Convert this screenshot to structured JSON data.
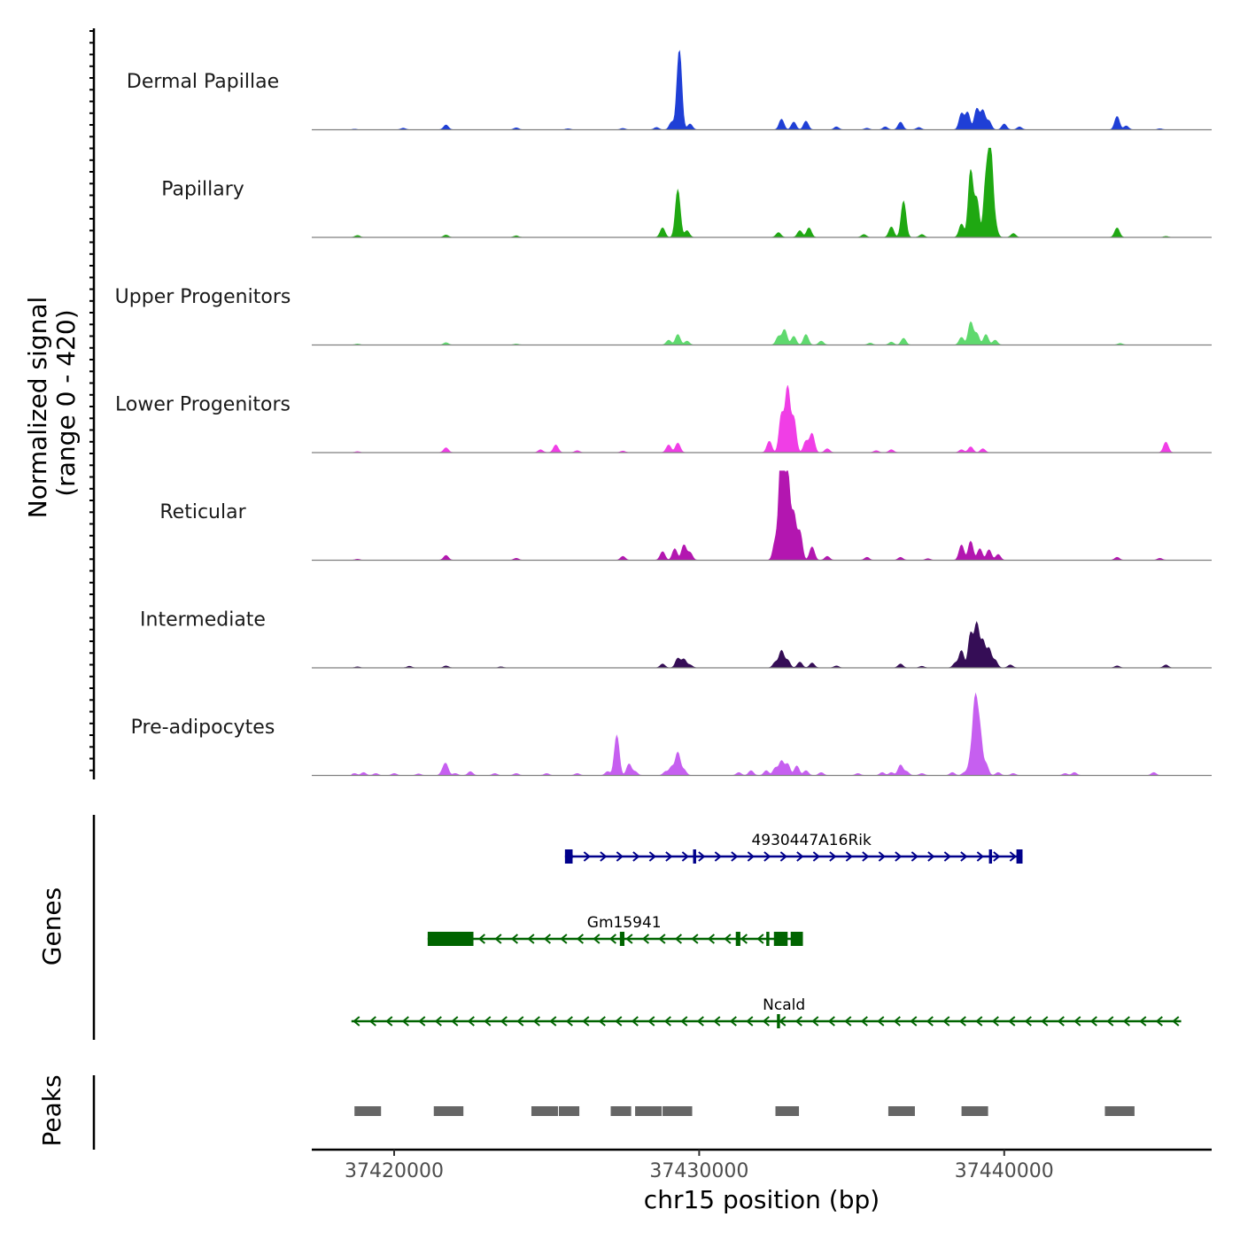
{
  "chart_data": {
    "type": "area",
    "title": "",
    "chromosome": "chr15",
    "xlabel": "chr15 position (bp)",
    "ylabel_line1": "Normalized signal",
    "ylabel_line2": "(range 0 - 420)",
    "signal_range": [
      0,
      420
    ],
    "xlim": [
      37417300,
      37446800
    ],
    "x_ticks": [
      37420000,
      37430000,
      37440000
    ],
    "x_tick_labels": [
      "37420000",
      "37430000",
      "37440000"
    ],
    "tracks": [
      {
        "name": "Dermal Papillae",
        "color": "#1f3fd6",
        "peaks": [
          [
            37418700,
            3
          ],
          [
            37420300,
            8
          ],
          [
            37421700,
            25
          ],
          [
            37424000,
            10
          ],
          [
            37425700,
            5
          ],
          [
            37427500,
            7
          ],
          [
            37428600,
            12
          ],
          [
            37429100,
            40
          ],
          [
            37429350,
            420
          ],
          [
            37429700,
            30
          ],
          [
            37432700,
            55
          ],
          [
            37433100,
            40
          ],
          [
            37433500,
            45
          ],
          [
            37434500,
            15
          ],
          [
            37435500,
            8
          ],
          [
            37436100,
            15
          ],
          [
            37436600,
            40
          ],
          [
            37437200,
            12
          ],
          [
            37438600,
            85
          ],
          [
            37438800,
            90
          ],
          [
            37439100,
            110
          ],
          [
            37439300,
            100
          ],
          [
            37439500,
            45
          ],
          [
            37440000,
            30
          ],
          [
            37440500,
            15
          ],
          [
            37443700,
            70
          ],
          [
            37444000,
            20
          ],
          [
            37445100,
            5
          ]
        ]
      },
      {
        "name": "Papillary",
        "color": "#1fa812",
        "peaks": [
          [
            37418800,
            10
          ],
          [
            37421700,
            12
          ],
          [
            37424000,
            8
          ],
          [
            37428800,
            50
          ],
          [
            37429300,
            250
          ],
          [
            37429600,
            35
          ],
          [
            37432600,
            25
          ],
          [
            37433300,
            35
          ],
          [
            37433600,
            50
          ],
          [
            37435400,
            15
          ],
          [
            37436300,
            55
          ],
          [
            37436700,
            190
          ],
          [
            37437300,
            15
          ],
          [
            37438600,
            70
          ],
          [
            37438900,
            350
          ],
          [
            37439100,
            200
          ],
          [
            37439400,
            280
          ],
          [
            37439550,
            450
          ],
          [
            37439700,
            60
          ],
          [
            37440300,
            20
          ],
          [
            37443700,
            50
          ],
          [
            37445300,
            5
          ]
        ]
      },
      {
        "name": "Upper Progenitors",
        "color": "#5fd96e",
        "peaks": [
          [
            37418800,
            5
          ],
          [
            37421700,
            12
          ],
          [
            37424000,
            5
          ],
          [
            37429000,
            25
          ],
          [
            37429300,
            55
          ],
          [
            37429600,
            20
          ],
          [
            37432600,
            45
          ],
          [
            37432800,
            80
          ],
          [
            37433100,
            45
          ],
          [
            37433500,
            55
          ],
          [
            37434000,
            20
          ],
          [
            37435600,
            10
          ],
          [
            37436300,
            15
          ],
          [
            37436700,
            35
          ],
          [
            37438600,
            40
          ],
          [
            37438900,
            120
          ],
          [
            37439100,
            60
          ],
          [
            37439400,
            55
          ],
          [
            37439700,
            25
          ],
          [
            37443800,
            8
          ]
        ]
      },
      {
        "name": "Lower Progenitors",
        "color": "#f03ee6",
        "peaks": [
          [
            37418800,
            5
          ],
          [
            37421700,
            25
          ],
          [
            37424800,
            15
          ],
          [
            37425300,
            40
          ],
          [
            37426000,
            10
          ],
          [
            37427500,
            8
          ],
          [
            37429000,
            40
          ],
          [
            37429300,
            50
          ],
          [
            37432300,
            60
          ],
          [
            37432700,
            200
          ],
          [
            37432900,
            340
          ],
          [
            37433100,
            180
          ],
          [
            37433500,
            60
          ],
          [
            37433700,
            100
          ],
          [
            37434200,
            20
          ],
          [
            37435800,
            10
          ],
          [
            37436300,
            15
          ],
          [
            37438600,
            15
          ],
          [
            37438900,
            30
          ],
          [
            37439300,
            20
          ],
          [
            37445300,
            55
          ]
        ]
      },
      {
        "name": "Reticular",
        "color": "#b316b0",
        "peaks": [
          [
            37418800,
            5
          ],
          [
            37421700,
            25
          ],
          [
            37424000,
            10
          ],
          [
            37427500,
            20
          ],
          [
            37428800,
            45
          ],
          [
            37429200,
            60
          ],
          [
            37429500,
            80
          ],
          [
            37429700,
            40
          ],
          [
            37432500,
            100
          ],
          [
            37432700,
            640
          ],
          [
            37432900,
            450
          ],
          [
            37433100,
            240
          ],
          [
            37433300,
            150
          ],
          [
            37433700,
            70
          ],
          [
            37434200,
            20
          ],
          [
            37435500,
            15
          ],
          [
            37436600,
            15
          ],
          [
            37437500,
            8
          ],
          [
            37438600,
            80
          ],
          [
            37438900,
            100
          ],
          [
            37439200,
            60
          ],
          [
            37439500,
            55
          ],
          [
            37439800,
            30
          ],
          [
            37443700,
            15
          ],
          [
            37445100,
            10
          ]
        ]
      },
      {
        "name": "Intermediate",
        "color": "#350d56",
        "peaks": [
          [
            37418800,
            5
          ],
          [
            37420500,
            8
          ],
          [
            37421700,
            10
          ],
          [
            37423500,
            5
          ],
          [
            37428800,
            20
          ],
          [
            37429300,
            50
          ],
          [
            37429500,
            45
          ],
          [
            37429700,
            15
          ],
          [
            37432500,
            30
          ],
          [
            37432700,
            90
          ],
          [
            37432900,
            40
          ],
          [
            37433300,
            30
          ],
          [
            37433700,
            25
          ],
          [
            37434500,
            10
          ],
          [
            37436600,
            20
          ],
          [
            37437300,
            8
          ],
          [
            37438400,
            25
          ],
          [
            37438600,
            90
          ],
          [
            37438900,
            180
          ],
          [
            37439100,
            230
          ],
          [
            37439300,
            140
          ],
          [
            37439500,
            100
          ],
          [
            37439700,
            40
          ],
          [
            37440200,
            15
          ],
          [
            37443700,
            10
          ],
          [
            37445300,
            15
          ]
        ]
      },
      {
        "name": "Pre-adipocytes",
        "color": "#c65ff0",
        "peaks": [
          [
            37418700,
            10
          ],
          [
            37419000,
            15
          ],
          [
            37419400,
            10
          ],
          [
            37420000,
            10
          ],
          [
            37420800,
            8
          ],
          [
            37421600,
            20
          ],
          [
            37421700,
            55
          ],
          [
            37422000,
            10
          ],
          [
            37422500,
            20
          ],
          [
            37423300,
            10
          ],
          [
            37424000,
            10
          ],
          [
            37425000,
            10
          ],
          [
            37426000,
            10
          ],
          [
            37427000,
            20
          ],
          [
            37427300,
            210
          ],
          [
            37427700,
            60
          ],
          [
            37427900,
            20
          ],
          [
            37428900,
            20
          ],
          [
            37429100,
            45
          ],
          [
            37429300,
            120
          ],
          [
            37429500,
            30
          ],
          [
            37431300,
            15
          ],
          [
            37431700,
            25
          ],
          [
            37432200,
            25
          ],
          [
            37432500,
            40
          ],
          [
            37432700,
            75
          ],
          [
            37432900,
            60
          ],
          [
            37433200,
            50
          ],
          [
            37433500,
            25
          ],
          [
            37434000,
            15
          ],
          [
            37435200,
            10
          ],
          [
            37436000,
            15
          ],
          [
            37436300,
            15
          ],
          [
            37436600,
            55
          ],
          [
            37436800,
            20
          ],
          [
            37437300,
            10
          ],
          [
            37438300,
            15
          ],
          [
            37438700,
            15
          ],
          [
            37438900,
            80
          ],
          [
            37439050,
            380
          ],
          [
            37439200,
            220
          ],
          [
            37439400,
            60
          ],
          [
            37439800,
            15
          ],
          [
            37440300,
            10
          ],
          [
            37442000,
            10
          ],
          [
            37442300,
            15
          ],
          [
            37444900,
            15
          ]
        ]
      }
    ],
    "genes_label": "Genes",
    "genes": [
      {
        "name": "4930447A16Rik",
        "strand": "+",
        "color": "#00008b",
        "start": 37425600,
        "end": 37440600,
        "exons": [
          [
            37425600,
            37425850
          ],
          [
            37429800,
            37429900
          ],
          [
            37439500,
            37439600
          ],
          [
            37440400,
            37440600
          ]
        ]
      },
      {
        "name": "Gm15941",
        "strand": "-",
        "color": "#006400",
        "start": 37421100,
        "end": 37433400,
        "exons": [
          [
            37421100,
            37422600
          ],
          [
            37427400,
            37427550
          ],
          [
            37431200,
            37431350
          ],
          [
            37432200,
            37432300
          ],
          [
            37432450,
            37432900
          ],
          [
            37433000,
            37433400
          ]
        ]
      },
      {
        "name": "Ncald",
        "strand": "-",
        "color": "#006400",
        "start": 37418600,
        "end": 37445800,
        "exons": [
          [
            37432550,
            37432650
          ]
        ]
      }
    ],
    "peaks_label": "Peaks",
    "peak_regions": [
      [
        37418700,
        37419600
      ],
      [
        37421300,
        37422300
      ],
      [
        37424500,
        37425400
      ],
      [
        37425400,
        37426100
      ],
      [
        37427100,
        37427800
      ],
      [
        37427900,
        37428800
      ],
      [
        37428800,
        37429800
      ],
      [
        37432500,
        37433300
      ],
      [
        37436200,
        37437100
      ],
      [
        37438600,
        37439500
      ],
      [
        37443300,
        37444300
      ]
    ]
  }
}
